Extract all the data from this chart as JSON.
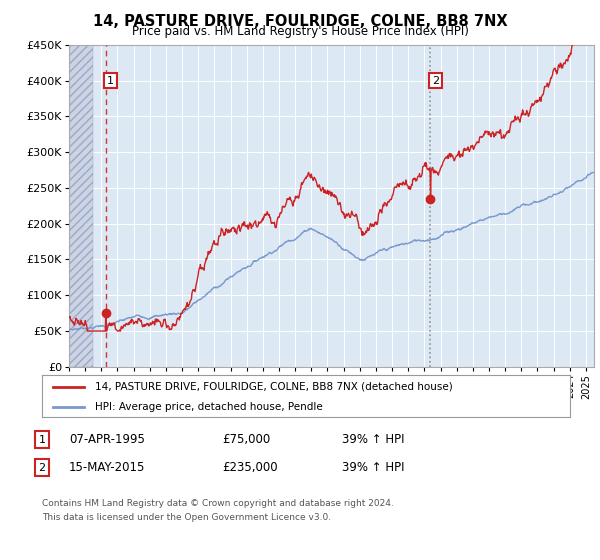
{
  "title": "14, PASTURE DRIVE, FOULRIDGE, COLNE, BB8 7NX",
  "subtitle": "Price paid vs. HM Land Registry's House Price Index (HPI)",
  "sale1_date": 1995.27,
  "sale1_price": 75000,
  "sale1_label": "07-APR-1995",
  "sale2_date": 2015.37,
  "sale2_price": 235000,
  "sale2_label": "15-MAY-2015",
  "hpi_label": "HPI: Average price, detached house, Pendle",
  "property_label": "14, PASTURE DRIVE, FOULRIDGE, COLNE, BB8 7NX (detached house)",
  "footnote1": "Contains HM Land Registry data © Crown copyright and database right 2024.",
  "footnote2": "This data is licensed under the Open Government Licence v3.0.",
  "ymin": 0,
  "ymax": 450000,
  "xmin": 1993.0,
  "xmax": 2025.5,
  "line_color_red": "#cc2222",
  "line_color_blue": "#7799cc",
  "bg_color": "#dde8f5",
  "grid_color": "#ffffff",
  "sale_row1_price": "£75,000",
  "sale_row1_pct": "39% ↑ HPI",
  "sale_row2_price": "£235,000",
  "sale_row2_pct": "39% ↑ HPI"
}
